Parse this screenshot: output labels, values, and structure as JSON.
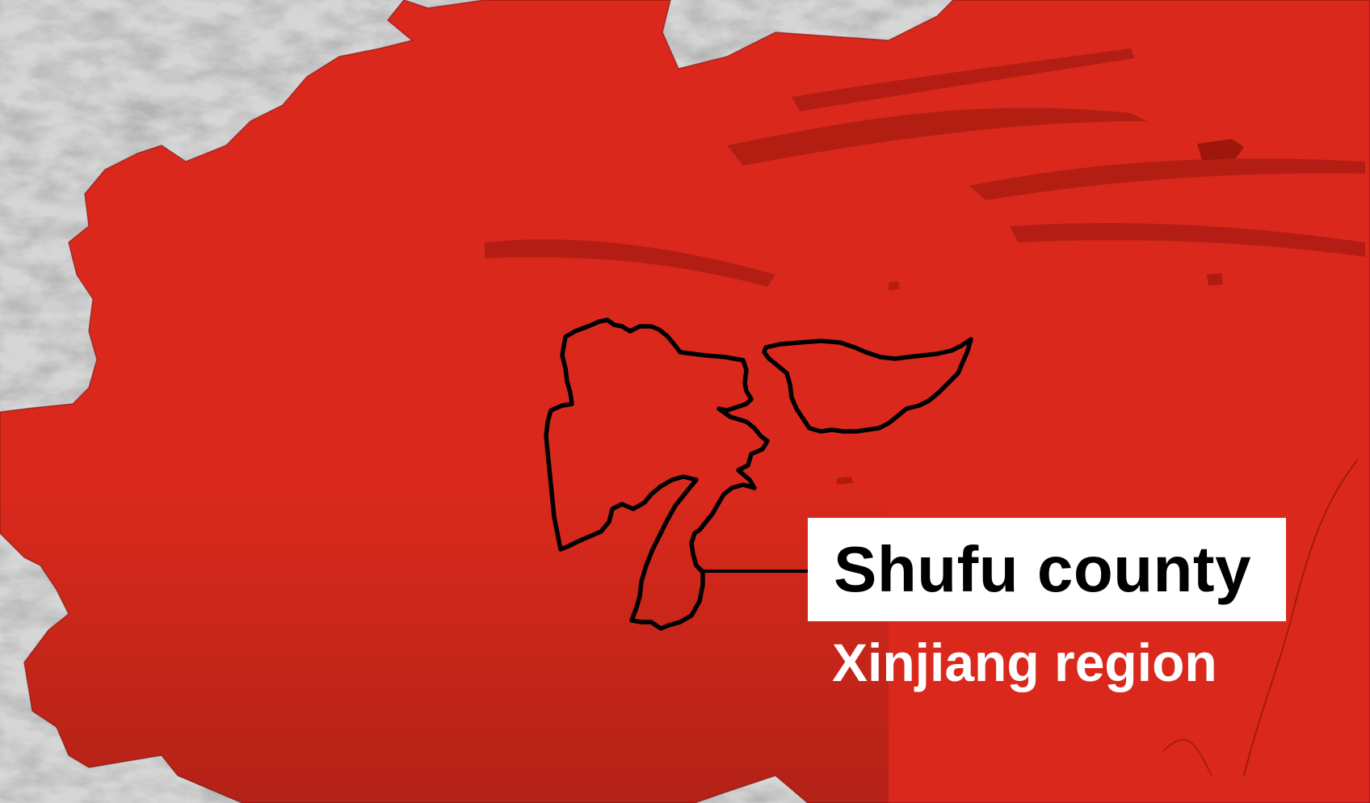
{
  "map": {
    "county_label": "Shufu county",
    "region_label": "Xinjiang region",
    "colors": {
      "region_fill": "#da291c",
      "relief_shadow": "#8a0f08",
      "outside_region": "#d6d6d6",
      "county_outline": "#000000",
      "label_background": "#ffffff",
      "region_label_text": "#ffffff"
    },
    "icons": [
      "county-outline-icon",
      "leader-line-icon"
    ]
  }
}
